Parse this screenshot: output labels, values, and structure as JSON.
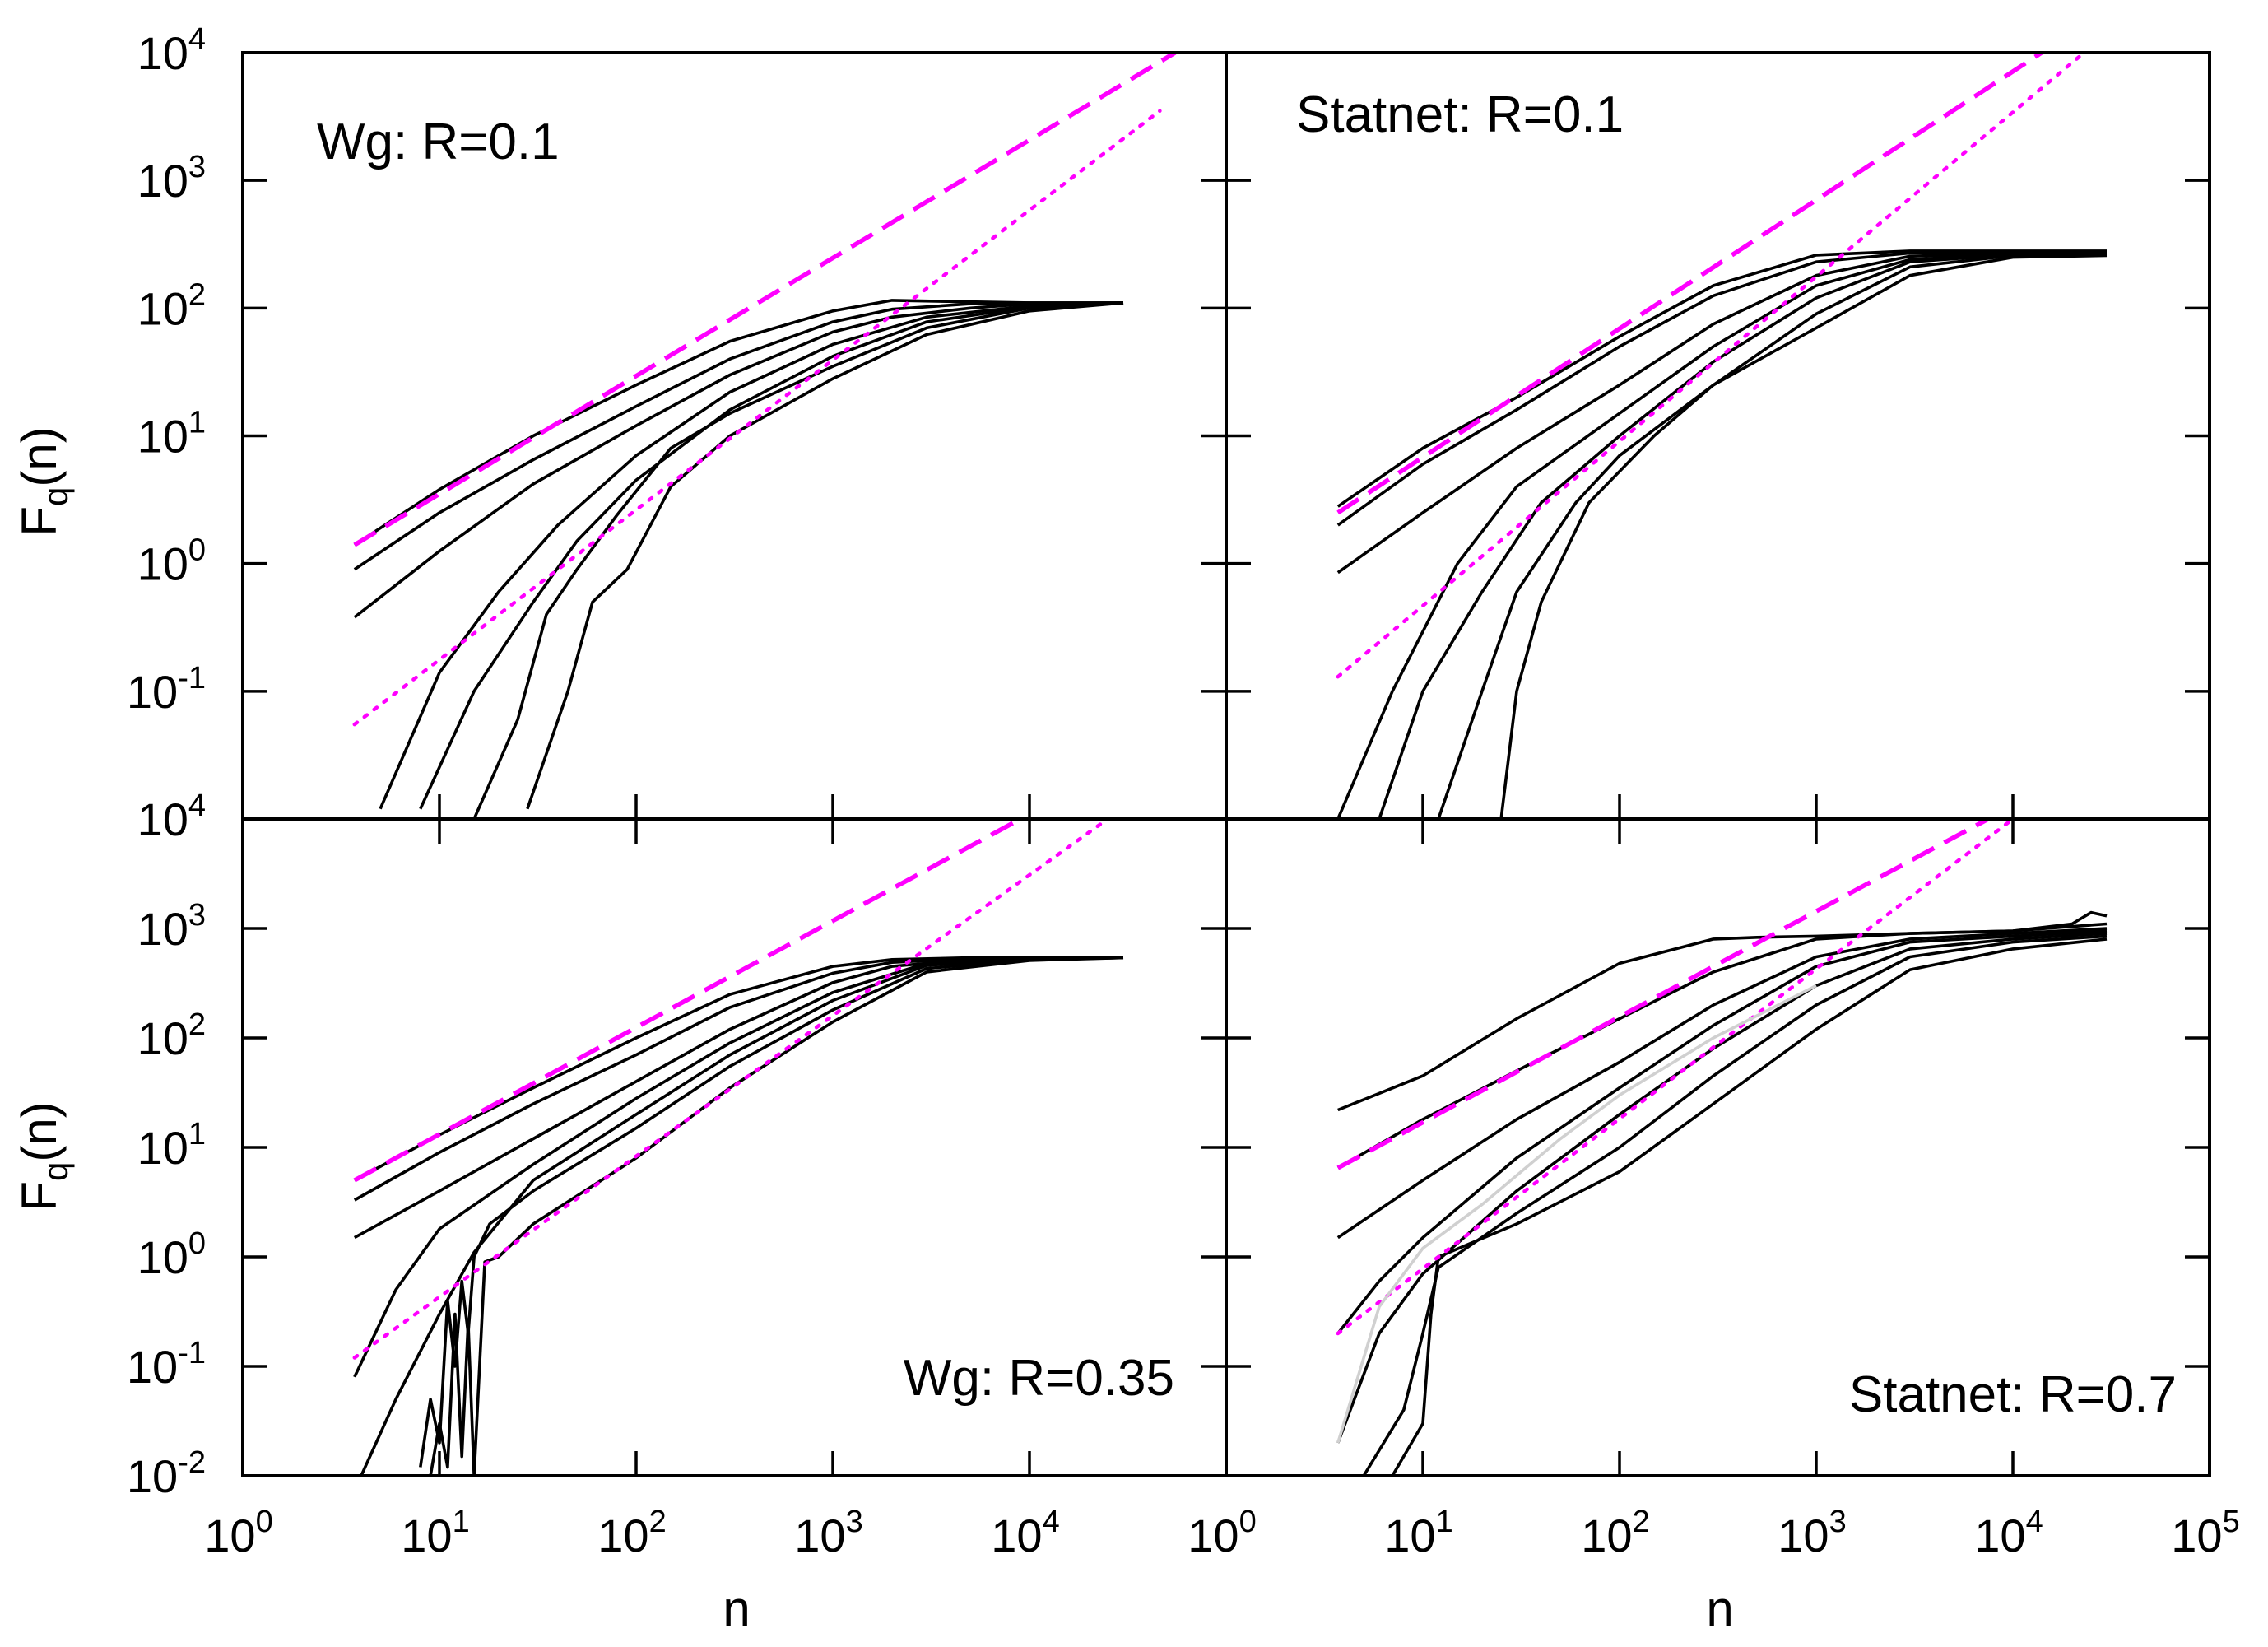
{
  "chart_data": [
    {
      "type": "line",
      "title": "Wg: R=0.1",
      "xlabel": "",
      "ylabel": "F_q(n)",
      "xscale": "log",
      "yscale": "log",
      "xlim": [
        1,
        100000
      ],
      "ylim": [
        0.01,
        10000
      ],
      "label_position": "top-left",
      "series": [
        {
          "name": "curve-1",
          "x": [
            3.7,
            10,
            30,
            100,
            300,
            1000,
            2000,
            5000,
            10000,
            30000
          ],
          "y": [
            1.4,
            3.8,
            10,
            25,
            55,
            95,
            115,
            112,
            110,
            110
          ]
        },
        {
          "name": "curve-2",
          "x": [
            3.7,
            10,
            30,
            100,
            300,
            1000,
            2000,
            5000,
            10000,
            30000
          ],
          "y": [
            0.9,
            2.5,
            6.5,
            17,
            40,
            78,
            98,
            108,
            110,
            110
          ]
        },
        {
          "name": "curve-3",
          "x": [
            3.7,
            10,
            30,
            100,
            300,
            1000,
            2000,
            5000,
            10000,
            30000
          ],
          "y": [
            0.38,
            1.25,
            4.2,
            12,
            30,
            65,
            85,
            100,
            108,
            110
          ]
        },
        {
          "name": "curve-4",
          "x": [
            5,
            10,
            20,
            40,
            100,
            300,
            1000,
            3000,
            10000,
            30000
          ],
          "y": [
            0.012,
            0.14,
            0.6,
            2,
            7,
            22,
            52,
            85,
            104,
            110
          ]
        },
        {
          "name": "curve-5",
          "x": [
            8,
            15,
            30,
            50,
            100,
            300,
            1000,
            3000,
            10000,
            30000
          ],
          "y": [
            0.012,
            0.1,
            0.5,
            1.5,
            4.5,
            16,
            42,
            78,
            102,
            110
          ]
        },
        {
          "name": "curve-6",
          "x": [
            15,
            25,
            35,
            50,
            80,
            150,
            300,
            1000,
            3000,
            10000,
            30000
          ],
          "y": [
            0.01,
            0.06,
            0.4,
            0.9,
            2.4,
            8,
            15,
            35,
            70,
            100,
            110
          ]
        },
        {
          "name": "curve-7",
          "x": [
            28,
            45,
            60,
            90,
            150,
            300,
            1000,
            3000,
            10000,
            30000
          ],
          "y": [
            0.012,
            0.1,
            0.5,
            0.9,
            4,
            10,
            28,
            62,
            95,
            110
          ]
        },
        {
          "name": "fit-dashed",
          "x": [
            3.7,
            55000
          ],
          "y": [
            1.4,
            10000
          ]
        },
        {
          "name": "fit-dotted",
          "x": [
            3.7,
            46000
          ],
          "y": [
            0.055,
            3500
          ]
        }
      ]
    },
    {
      "type": "line",
      "title": "Statnet: R=0.1",
      "xlabel": "",
      "ylabel": "",
      "xscale": "log",
      "yscale": "log",
      "xlim": [
        1,
        100000
      ],
      "ylim": [
        0.01,
        10000
      ],
      "label_position": "top-left",
      "series": [
        {
          "name": "curve-1",
          "x": [
            3.7,
            10,
            30,
            100,
            300,
            1000,
            3000,
            10000,
            30000
          ],
          "y": [
            2.8,
            8,
            20,
            60,
            150,
            260,
            280,
            280,
            280
          ]
        },
        {
          "name": "curve-2",
          "x": [
            3.7,
            10,
            30,
            100,
            300,
            1000,
            3000,
            10000,
            30000
          ],
          "y": [
            2,
            6,
            16,
            50,
            125,
            230,
            270,
            275,
            275
          ]
        },
        {
          "name": "curve-3",
          "x": [
            3.7,
            10,
            30,
            100,
            300,
            1000,
            3000,
            10000,
            30000
          ],
          "y": [
            0.85,
            2.5,
            8,
            25,
            75,
            180,
            255,
            270,
            270
          ]
        },
        {
          "name": "curve-4",
          "x": [
            3.7,
            7,
            15,
            30,
            100,
            300,
            1000,
            3000,
            10000,
            30000
          ],
          "y": [
            0.01,
            0.1,
            1,
            4,
            15,
            50,
            150,
            240,
            265,
            265
          ]
        },
        {
          "name": "curve-5",
          "x": [
            6,
            10,
            20,
            40,
            100,
            300,
            1000,
            3000,
            10000,
            30000
          ],
          "y": [
            0.01,
            0.1,
            0.6,
            3,
            10,
            38,
            120,
            230,
            262,
            262
          ]
        },
        {
          "name": "curve-6",
          "x": [
            12,
            20,
            30,
            60,
            100,
            300,
            1000,
            3000,
            10000,
            30000
          ],
          "y": [
            0.01,
            0.1,
            0.6,
            3,
            7,
            25,
            90,
            210,
            258,
            260
          ]
        },
        {
          "name": "curve-7",
          "x": [
            25,
            30,
            40,
            70,
            150,
            300,
            1000,
            3000,
            10000,
            30000
          ],
          "y": [
            0.01,
            0.1,
            0.5,
            3,
            10,
            25,
            70,
            180,
            250,
            258
          ]
        },
        {
          "name": "fit-dashed",
          "x": [
            3.7,
            14000
          ],
          "y": [
            2.5,
            10000
          ]
        },
        {
          "name": "fit-dotted",
          "x": [
            3.7,
            23000
          ],
          "y": [
            0.13,
            10000
          ]
        }
      ]
    },
    {
      "type": "line",
      "title": "Wg: R=0.35",
      "xlabel": "n",
      "ylabel": "F_q(n)",
      "xscale": "log",
      "yscale": "log",
      "xlim": [
        1,
        100000
      ],
      "ylim": [
        0.01,
        10000
      ],
      "label_position": "bottom-right",
      "series": [
        {
          "name": "curve-1",
          "x": [
            3.7,
            10,
            30,
            100,
            300,
            1000,
            2000,
            5000,
            10000,
            30000
          ],
          "y": [
            5,
            13,
            35,
            100,
            250,
            450,
            520,
            540,
            540,
            540
          ]
        },
        {
          "name": "curve-2",
          "x": [
            3.7,
            10,
            30,
            100,
            300,
            1000,
            2000,
            5000,
            10000,
            30000
          ],
          "y": [
            3.3,
            9,
            25,
            70,
            190,
            390,
            490,
            530,
            540,
            540
          ]
        },
        {
          "name": "curve-3",
          "x": [
            3.7,
            10,
            30,
            100,
            300,
            1000,
            2000,
            5000,
            10000,
            30000
          ],
          "y": [
            1.5,
            4,
            12,
            40,
            120,
            320,
            450,
            520,
            535,
            540
          ]
        },
        {
          "name": "curve-4",
          "x": [
            3.7,
            6,
            10,
            30,
            100,
            300,
            1000,
            3000,
            10000,
            30000
          ],
          "y": [
            0.08,
            0.5,
            1.8,
            7,
            28,
            90,
            260,
            480,
            530,
            540
          ]
        },
        {
          "name": "curve-5",
          "x": [
            4,
            6,
            10,
            15,
            30,
            100,
            300,
            1000,
            3000,
            10000,
            30000
          ],
          "y": [
            0.01,
            0.05,
            0.3,
            1.1,
            5,
            20,
            70,
            220,
            460,
            525,
            540
          ]
        },
        {
          "name": "curve-6",
          "x": [
            8,
            9,
            10,
            11,
            12,
            13,
            14,
            15,
            18,
            30,
            100,
            300,
            1000,
            3000,
            10000,
            30000
          ],
          "y": [
            0.012,
            0.05,
            0.02,
            0.4,
            0.1,
            0.6,
            0.2,
            1,
            2,
            4,
            15,
            55,
            180,
            430,
            520,
            540
          ]
        },
        {
          "name": "curve-7",
          "x": [
            9,
            10,
            11,
            12,
            13,
            14,
            15,
            17,
            20,
            30,
            100,
            300,
            1000,
            3000,
            10000,
            30000
          ],
          "y": [
            0.01,
            0.03,
            0.012,
            0.3,
            0.015,
            0.25,
            0.01,
            0.9,
            1,
            2,
            8,
            35,
            140,
            400,
            510,
            540
          ]
        },
        {
          "name": "fit-dashed",
          "x": [
            3.7,
            9000
          ],
          "y": [
            5,
            10000
          ]
        },
        {
          "name": "fit-dotted",
          "x": [
            3.7,
            25000
          ],
          "y": [
            0.12,
            10000
          ]
        }
      ]
    },
    {
      "type": "line",
      "title": "Statnet: R=0.7",
      "xlabel": "n",
      "ylabel": "",
      "xscale": "log",
      "yscale": "log",
      "xlim": [
        1,
        100000
      ],
      "ylim": [
        0.01,
        10000
      ],
      "label_position": "bottom-right",
      "series": [
        {
          "name": "curve-1",
          "x": [
            3.7,
            10,
            30,
            100,
            300,
            500,
            1000,
            3000,
            10000,
            20000,
            25000,
            30000
          ],
          "y": [
            22,
            45,
            150,
            480,
            800,
            830,
            850,
            900,
            950,
            1100,
            1400,
            1300
          ]
        },
        {
          "name": "curve-2",
          "x": [
            3.7,
            10,
            30,
            100,
            300,
            1000,
            3000,
            10000,
            30000
          ],
          "y": [
            6.5,
            18,
            50,
            150,
            400,
            800,
            900,
            950,
            1100
          ]
        },
        {
          "name": "curve-3",
          "x": [
            3.7,
            10,
            30,
            100,
            300,
            1000,
            3000,
            10000,
            30000
          ],
          "y": [
            1.5,
            5,
            18,
            60,
            200,
            550,
            800,
            900,
            1000
          ]
        },
        {
          "name": "curve-4",
          "x": [
            3.7,
            6,
            10,
            30,
            100,
            300,
            1000,
            3000,
            10000,
            30000
          ],
          "y": [
            0.2,
            0.6,
            1.5,
            8,
            35,
            130,
            450,
            750,
            850,
            950
          ]
        },
        {
          "name": "curve-5",
          "x": [
            3.7,
            6,
            10,
            30,
            100,
            300,
            1000,
            3000,
            10000,
            30000
          ],
          "y": [
            0.02,
            0.2,
            0.7,
            4,
            20,
            80,
            300,
            650,
            800,
            900
          ]
        },
        {
          "name": "curve-6",
          "x": [
            5,
            8,
            10,
            12,
            30,
            100,
            300,
            1000,
            3000,
            10000,
            30000
          ],
          "y": [
            0.01,
            0.04,
            0.2,
            0.8,
            2.5,
            10,
            45,
            200,
            550,
            750,
            850
          ]
        },
        {
          "name": "curve-7",
          "x": [
            7,
            10,
            11,
            12,
            30,
            100,
            300,
            1000,
            3000,
            10000,
            30000
          ],
          "y": [
            0.01,
            0.03,
            0.3,
            1,
            2,
            6,
            25,
            120,
            420,
            650,
            800
          ]
        },
        {
          "name": "fit-dashed",
          "x": [
            3.7,
            7500
          ],
          "y": [
            6.5,
            10000
          ]
        },
        {
          "name": "fit-dotted",
          "x": [
            3.7,
            10000
          ],
          "y": [
            0.2,
            10000
          ]
        }
      ]
    }
  ],
  "tick_labels": {
    "x_bottom": [
      "10",
      "10",
      "10",
      "10",
      "10",
      "10",
      "10",
      "10",
      "10",
      "10",
      "10"
    ],
    "x_bottom_exp": [
      "0",
      "1",
      "2",
      "3",
      "4",
      "0",
      "1",
      "2",
      "3",
      "4",
      "5"
    ],
    "y_top": [
      "10",
      "10",
      "10",
      "10",
      "10",
      "10"
    ],
    "y_top_exp": [
      "4",
      "3",
      "2",
      "1",
      "0",
      "-1"
    ],
    "y_bottom": [
      "10",
      "10",
      "10",
      "10",
      "10",
      "10",
      "10"
    ],
    "y_bottom_exp": [
      "4",
      "3",
      "2",
      "1",
      "0",
      "-1",
      "-2"
    ]
  },
  "axis_labels": {
    "y_main": "F",
    "y_sub": "q",
    "y_tail": "(n)",
    "x": "n"
  },
  "colors": {
    "curve": "#000000",
    "faint_curve": "#d0d0d0",
    "fit": "#ff00ff"
  }
}
